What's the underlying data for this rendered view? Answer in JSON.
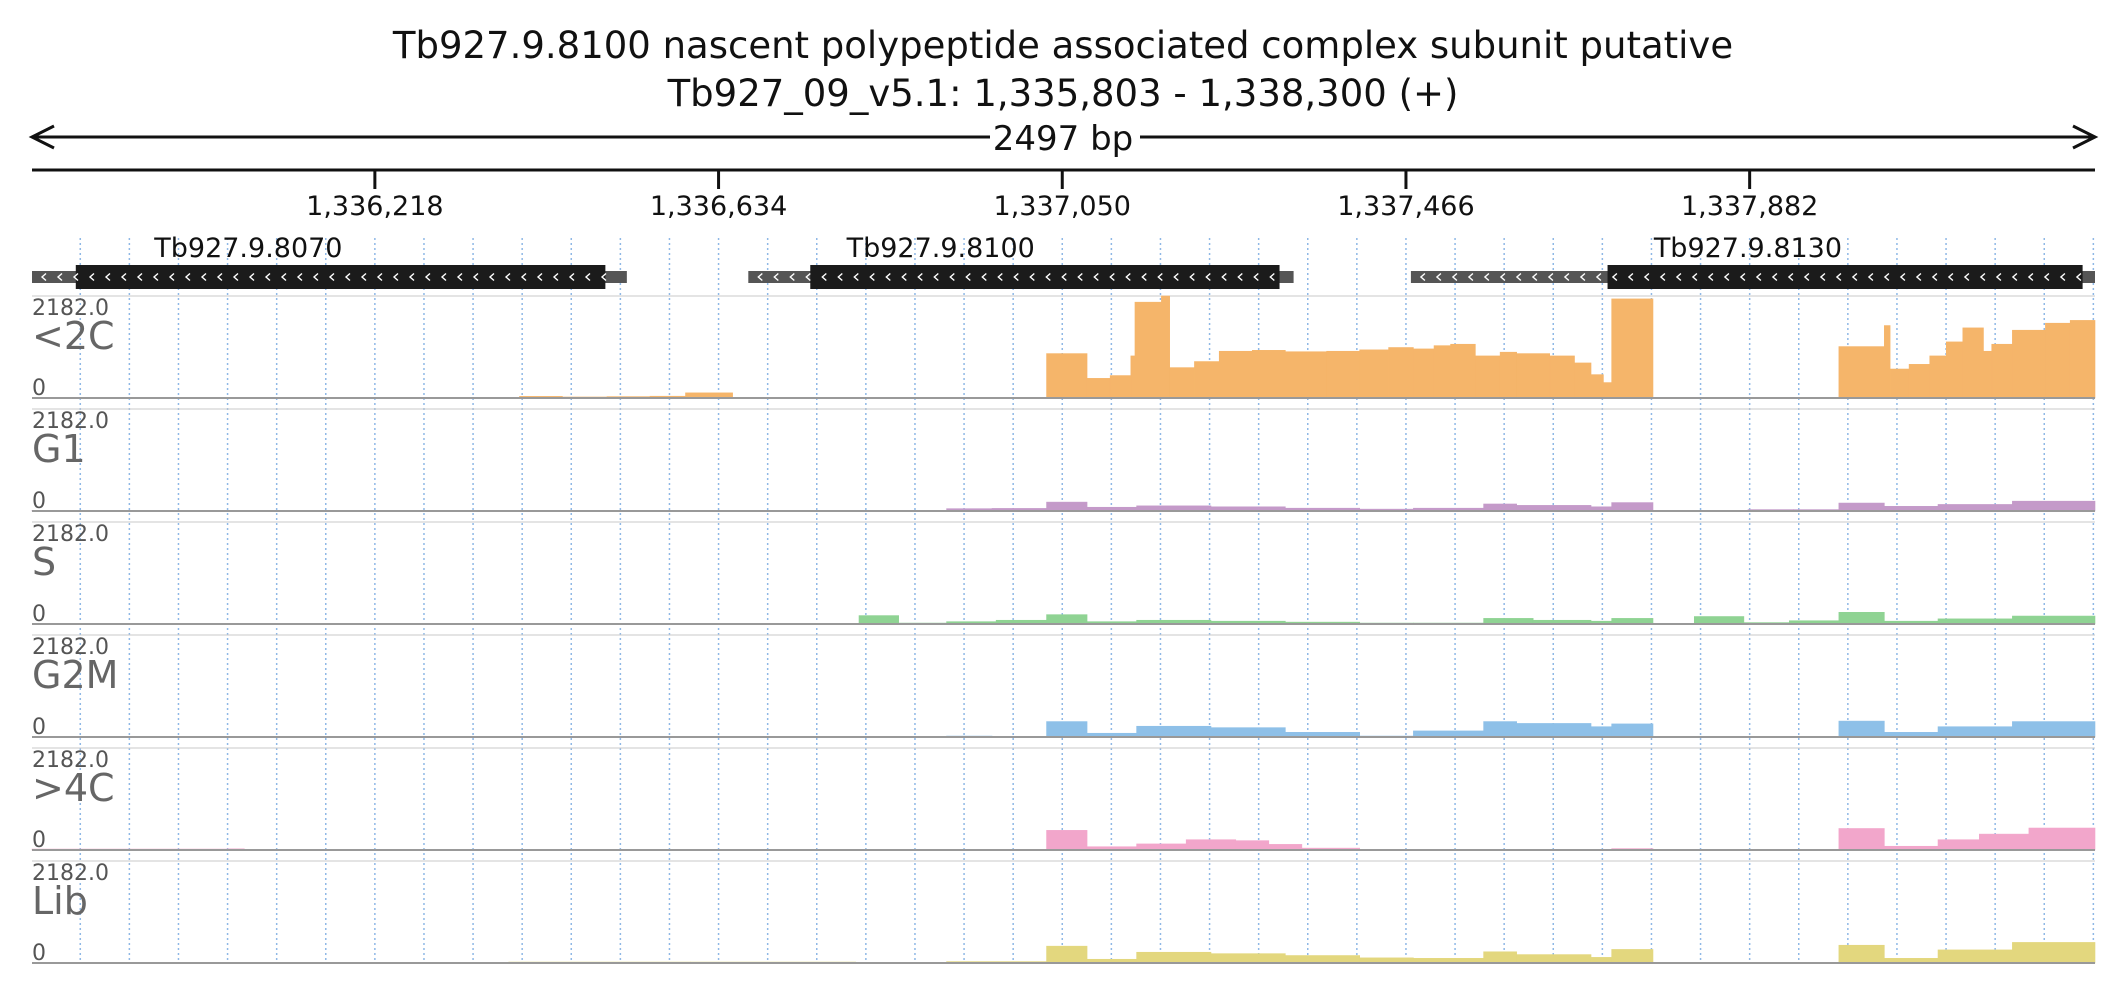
{
  "chart_data": {
    "type": "bar",
    "title": "Tb927.9.8100  nascent polypeptide associated complex subunit  putative",
    "subtitle": "Tb927_09_v5.1: 1,335,803 - 1,338,300 (+)",
    "span_label": "2497 bp",
    "region": {
      "chrom": "Tb927_09_v5.1",
      "start": 1335803,
      "end": 1338300,
      "strand": "+"
    },
    "ticks": [
      {
        "pos": 1336218,
        "label": "1,336,218"
      },
      {
        "pos": 1336634,
        "label": "1,336,634"
      },
      {
        "pos": 1337050,
        "label": "1,337,050"
      },
      {
        "pos": 1337466,
        "label": "1,337,466"
      },
      {
        "pos": 1337882,
        "label": "1,337,882"
      }
    ],
    "genes": [
      {
        "name": "Tb927.9.8070",
        "utr_start": 1335803,
        "cds_start": 1335856,
        "cds_end": 1336497,
        "utr_end": 1336523,
        "label_pos": 1335951,
        "strand": "-"
      },
      {
        "name": "Tb927.9.8100",
        "utr_start": 1336670,
        "cds_start": 1336745,
        "cds_end": 1337313,
        "utr_end": 1337330,
        "label_pos": 1336789,
        "strand": "-"
      },
      {
        "name": "Tb927.9.8130",
        "utr_start": 1337472,
        "cds_start": 1337710,
        "cds_end": 1338285,
        "utr_end": 1338300,
        "label_pos": 1337766,
        "strand": "-"
      }
    ],
    "ylim": [
      0,
      2182
    ],
    "ymax_label": "2182.0",
    "ymin_label": "0",
    "dashed_grid": true,
    "tracks": [
      {
        "name": "<2C",
        "color": "#f5b56a",
        "bars": [
          [
            1336393,
            1336445,
            35
          ],
          [
            1336445,
            1336499,
            22
          ],
          [
            1336499,
            1336551,
            30
          ],
          [
            1336551,
            1336594,
            38
          ],
          [
            1336594,
            1336651,
            110
          ],
          [
            1337031,
            1337080,
            950
          ],
          [
            1337080,
            1337108,
            420
          ],
          [
            1337108,
            1337133,
            480
          ],
          [
            1337133,
            1337138,
            900
          ],
          [
            1337138,
            1337170,
            2050
          ],
          [
            1337170,
            1337180,
            2182
          ],
          [
            1337180,
            1337210,
            650
          ],
          [
            1337210,
            1337240,
            780
          ],
          [
            1337240,
            1337280,
            1000
          ],
          [
            1337280,
            1337320,
            1020
          ],
          [
            1337320,
            1337370,
            990
          ],
          [
            1337370,
            1337410,
            1000
          ],
          [
            1337410,
            1337445,
            1030
          ],
          [
            1337445,
            1337475,
            1080
          ],
          [
            1337475,
            1337500,
            1050
          ],
          [
            1337500,
            1337520,
            1120
          ],
          [
            1337520,
            1337550,
            1150
          ],
          [
            1337550,
            1337580,
            900
          ],
          [
            1337580,
            1337600,
            980
          ],
          [
            1337600,
            1337640,
            950
          ],
          [
            1337640,
            1337670,
            900
          ],
          [
            1337670,
            1337690,
            750
          ],
          [
            1337690,
            1337705,
            500
          ],
          [
            1337705,
            1337715,
            330
          ],
          [
            1337715,
            1337765,
            2120
          ],
          [
            1337990,
            1338045,
            1100
          ],
          [
            1338045,
            1338052,
            1550
          ],
          [
            1338052,
            1338075,
            620
          ],
          [
            1338075,
            1338100,
            720
          ],
          [
            1338100,
            1338120,
            900
          ],
          [
            1338120,
            1338140,
            1200
          ],
          [
            1338140,
            1338165,
            1500
          ],
          [
            1338165,
            1338175,
            1000
          ],
          [
            1338175,
            1338200,
            1150
          ],
          [
            1338200,
            1338240,
            1450
          ],
          [
            1338240,
            1338270,
            1600
          ],
          [
            1338270,
            1338300,
            1660
          ]
        ]
      },
      {
        "name": "G1",
        "color": "#c49ac9",
        "bars": [
          [
            1335803,
            1335890,
            12
          ],
          [
            1336590,
            1336700,
            10
          ],
          [
            1336910,
            1336965,
            50
          ],
          [
            1336965,
            1337031,
            55
          ],
          [
            1337031,
            1337080,
            190
          ],
          [
            1337080,
            1337140,
            80
          ],
          [
            1337140,
            1337230,
            110
          ],
          [
            1337230,
            1337320,
            90
          ],
          [
            1337320,
            1337410,
            60
          ],
          [
            1337410,
            1337475,
            40
          ],
          [
            1337475,
            1337560,
            60
          ],
          [
            1337560,
            1337600,
            150
          ],
          [
            1337600,
            1337690,
            120
          ],
          [
            1337690,
            1337715,
            90
          ],
          [
            1337715,
            1337765,
            180
          ],
          [
            1337880,
            1337935,
            30
          ],
          [
            1337935,
            1337990,
            30
          ],
          [
            1337990,
            1338045,
            170
          ],
          [
            1338045,
            1338110,
            100
          ],
          [
            1338110,
            1338200,
            140
          ],
          [
            1338200,
            1338300,
            210
          ]
        ]
      },
      {
        "name": "S",
        "color": "#8fd393",
        "bars": [
          [
            1336804,
            1336852,
            180
          ],
          [
            1336852,
            1336910,
            20
          ],
          [
            1336910,
            1336970,
            50
          ],
          [
            1336970,
            1337031,
            80
          ],
          [
            1337031,
            1337080,
            200
          ],
          [
            1337080,
            1337140,
            50
          ],
          [
            1337140,
            1337230,
            80
          ],
          [
            1337230,
            1337320,
            60
          ],
          [
            1337320,
            1337410,
            40
          ],
          [
            1337410,
            1337475,
            20
          ],
          [
            1337475,
            1337560,
            20
          ],
          [
            1337560,
            1337620,
            120
          ],
          [
            1337620,
            1337690,
            80
          ],
          [
            1337690,
            1337715,
            60
          ],
          [
            1337715,
            1337765,
            120
          ],
          [
            1337815,
            1337875,
            160
          ],
          [
            1337875,
            1337930,
            30
          ],
          [
            1337930,
            1337990,
            70
          ],
          [
            1337990,
            1338045,
            250
          ],
          [
            1338045,
            1338110,
            60
          ],
          [
            1338110,
            1338200,
            110
          ],
          [
            1338200,
            1338300,
            170
          ]
        ]
      },
      {
        "name": "G2M",
        "color": "#8ec0e8",
        "bars": [
          [
            1336499,
            1336551,
            10
          ],
          [
            1336551,
            1336594,
            15
          ],
          [
            1336630,
            1336700,
            15
          ],
          [
            1336910,
            1336965,
            20
          ],
          [
            1336965,
            1337031,
            15
          ],
          [
            1337031,
            1337080,
            330
          ],
          [
            1337080,
            1337140,
            80
          ],
          [
            1337140,
            1337230,
            230
          ],
          [
            1337230,
            1337320,
            200
          ],
          [
            1337320,
            1337410,
            100
          ],
          [
            1337410,
            1337475,
            20
          ],
          [
            1337475,
            1337560,
            130
          ],
          [
            1337560,
            1337600,
            330
          ],
          [
            1337600,
            1337690,
            290
          ],
          [
            1337690,
            1337715,
            220
          ],
          [
            1337715,
            1337765,
            280
          ],
          [
            1337880,
            1337935,
            15
          ],
          [
            1337935,
            1337990,
            10
          ],
          [
            1337990,
            1338045,
            340
          ],
          [
            1338045,
            1338110,
            100
          ],
          [
            1338110,
            1338200,
            220
          ],
          [
            1338200,
            1338300,
            330
          ]
        ]
      },
      {
        "name": ">4C",
        "color": "#f2a6cb",
        "bars": [
          [
            1335803,
            1336040,
            20
          ],
          [
            1336040,
            1336060,
            25
          ],
          [
            1337031,
            1337080,
            420
          ],
          [
            1337080,
            1337140,
            70
          ],
          [
            1337140,
            1337200,
            130
          ],
          [
            1337200,
            1337260,
            220
          ],
          [
            1337260,
            1337300,
            200
          ],
          [
            1337300,
            1337340,
            120
          ],
          [
            1337340,
            1337410,
            40
          ],
          [
            1337410,
            1337470,
            15
          ],
          [
            1337470,
            1337560,
            10
          ],
          [
            1337600,
            1337690,
            15
          ],
          [
            1337715,
            1337765,
            30
          ],
          [
            1337990,
            1338045,
            460
          ],
          [
            1338045,
            1338110,
            80
          ],
          [
            1338110,
            1338160,
            220
          ],
          [
            1338160,
            1338220,
            340
          ],
          [
            1338220,
            1338300,
            470
          ]
        ]
      },
      {
        "name": "Lib",
        "color": "#e3d77e",
        "bars": [
          [
            1336380,
            1336600,
            20
          ],
          [
            1336600,
            1336800,
            20
          ],
          [
            1336910,
            1337031,
            30
          ],
          [
            1337031,
            1337080,
            360
          ],
          [
            1337080,
            1337140,
            80
          ],
          [
            1337140,
            1337230,
            230
          ],
          [
            1337230,
            1337320,
            200
          ],
          [
            1337320,
            1337410,
            160
          ],
          [
            1337410,
            1337475,
            110
          ],
          [
            1337475,
            1337560,
            100
          ],
          [
            1337560,
            1337600,
            240
          ],
          [
            1337600,
            1337690,
            180
          ],
          [
            1337690,
            1337715,
            120
          ],
          [
            1337715,
            1337765,
            290
          ],
          [
            1337880,
            1337935,
            10
          ],
          [
            1337935,
            1337990,
            10
          ],
          [
            1337990,
            1338045,
            380
          ],
          [
            1338045,
            1338110,
            100
          ],
          [
            1338110,
            1338200,
            280
          ],
          [
            1338200,
            1338300,
            440
          ]
        ]
      }
    ]
  }
}
